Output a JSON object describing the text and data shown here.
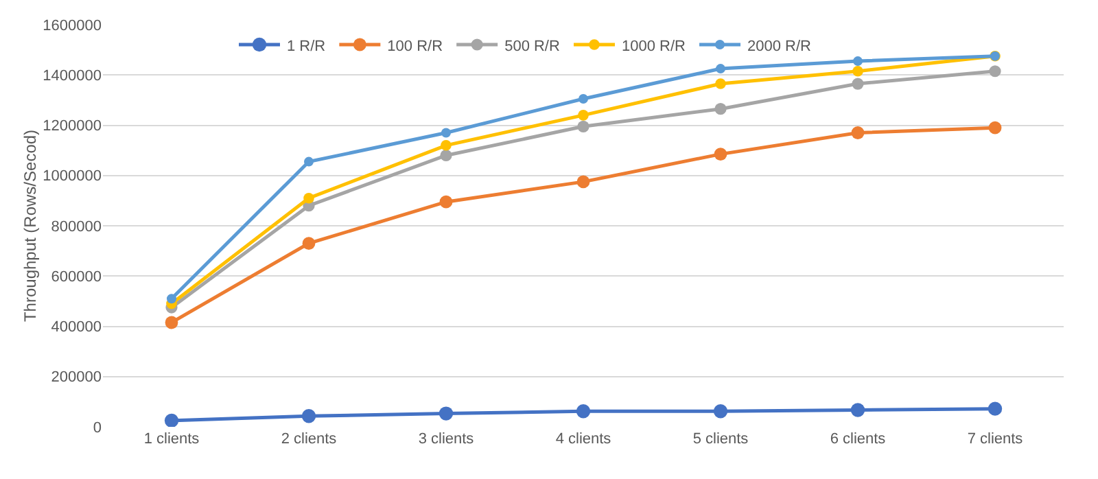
{
  "chart_data": {
    "type": "line",
    "ylabel": "Throughput (Rows/Secod)",
    "categories": [
      "1 clients",
      "2 clients",
      "3 clients",
      "4 clients",
      "5 clients",
      "6 clients",
      "7 clients"
    ],
    "series": [
      {
        "name": "1 R/R",
        "color": "#4472c4",
        "values": [
          25000,
          43000,
          53000,
          62000,
          62000,
          67000,
          72000
        ]
      },
      {
        "name": "100 R/R",
        "color": "#ed7d31",
        "values": [
          415000,
          730000,
          895000,
          975000,
          1085000,
          1170000,
          1190000
        ]
      },
      {
        "name": "500 R/R",
        "color": "#a5a5a5",
        "values": [
          475000,
          880000,
          1080000,
          1195000,
          1265000,
          1365000,
          1415000
        ]
      },
      {
        "name": "1000 R/R",
        "color": "#ffc000",
        "values": [
          490000,
          910000,
          1120000,
          1240000,
          1365000,
          1415000,
          1475000
        ]
      },
      {
        "name": "2000 R/R",
        "color": "#5b9bd5",
        "values": [
          510000,
          1055000,
          1170000,
          1305000,
          1425000,
          1455000,
          1475000
        ]
      }
    ],
    "ylim": [
      0,
      1600000
    ],
    "yticks": [
      0,
      200000,
      400000,
      600000,
      800000,
      1000000,
      1200000,
      1400000,
      1600000
    ],
    "grid": "y",
    "legend": "top",
    "marker": "circle",
    "line_style": "solid"
  }
}
